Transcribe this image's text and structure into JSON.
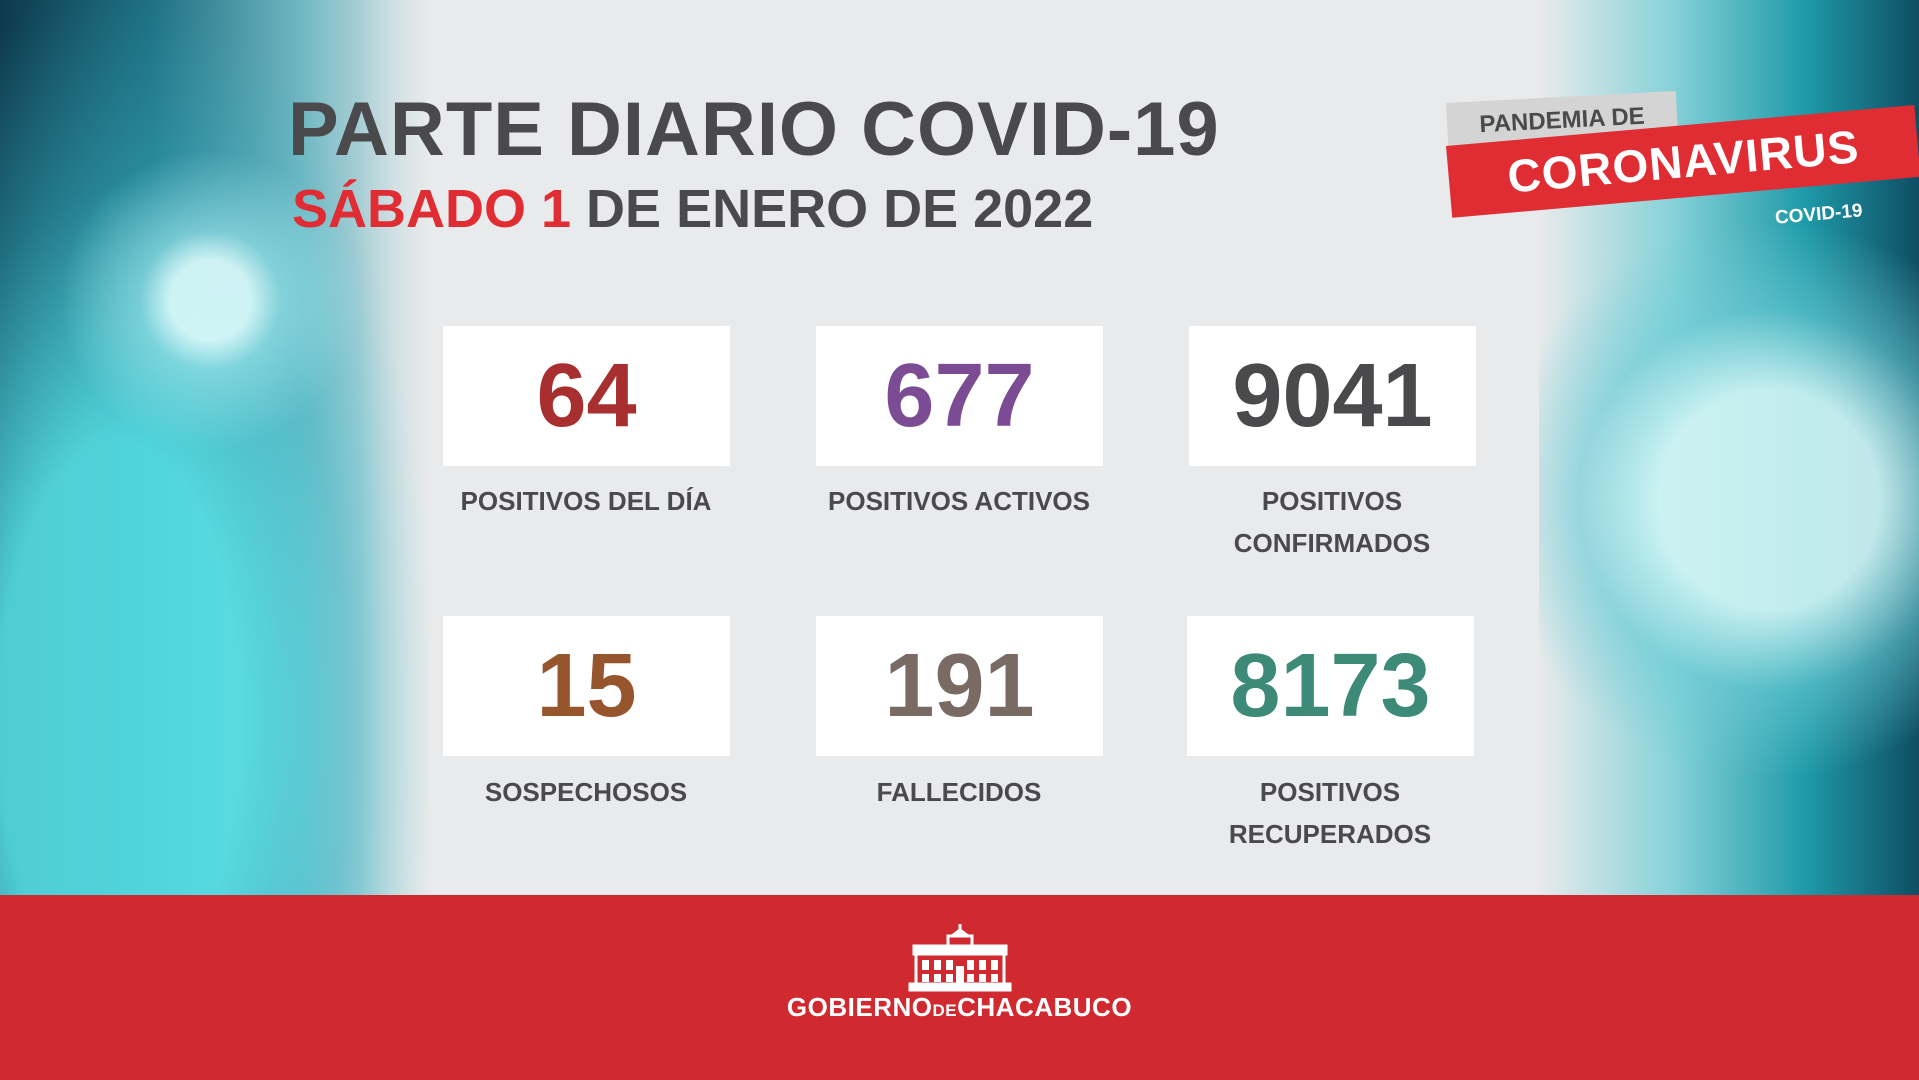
{
  "header": {
    "title": "PARTE DIARIO COVID-19",
    "date_day": "SÁBADO 1",
    "date_rest": " DE ENERO DE 2022"
  },
  "logo": {
    "pandemia": "PANDEMIA DE",
    "coronavirus": "CORONAVIRUS",
    "covid": "COVID-19"
  },
  "stats": [
    {
      "value": "64",
      "label_line1": "POSITIVOS DEL DÍA",
      "label_line2": "",
      "color": "#a82f2f"
    },
    {
      "value": "677",
      "label_line1": "POSITIVOS ACTIVOS",
      "label_line2": "",
      "color": "#7b4b93"
    },
    {
      "value": "9041",
      "label_line1": "POSITIVOS",
      "label_line2": "CONFIRMADOS",
      "color": "#4a4a4c"
    },
    {
      "value": "15",
      "label_line1": "SOSPECHOSOS",
      "label_line2": "",
      "color": "#96552c"
    },
    {
      "value": "191",
      "label_line1": "FALLECIDOS",
      "label_line2": "",
      "color": "#7a6a64"
    },
    {
      "value": "8173",
      "label_line1": "POSITIVOS",
      "label_line2": "RECUPERADOS",
      "color": "#3c8a77"
    }
  ],
  "footer": {
    "gov_a": "GOBIERNO",
    "gov_de": "DE",
    "gov_b": "CHACABUCO"
  },
  "colors": {
    "accent_red": "#e02c33",
    "footer_red": "#d02a30",
    "text_gray": "#4a4a4c"
  }
}
